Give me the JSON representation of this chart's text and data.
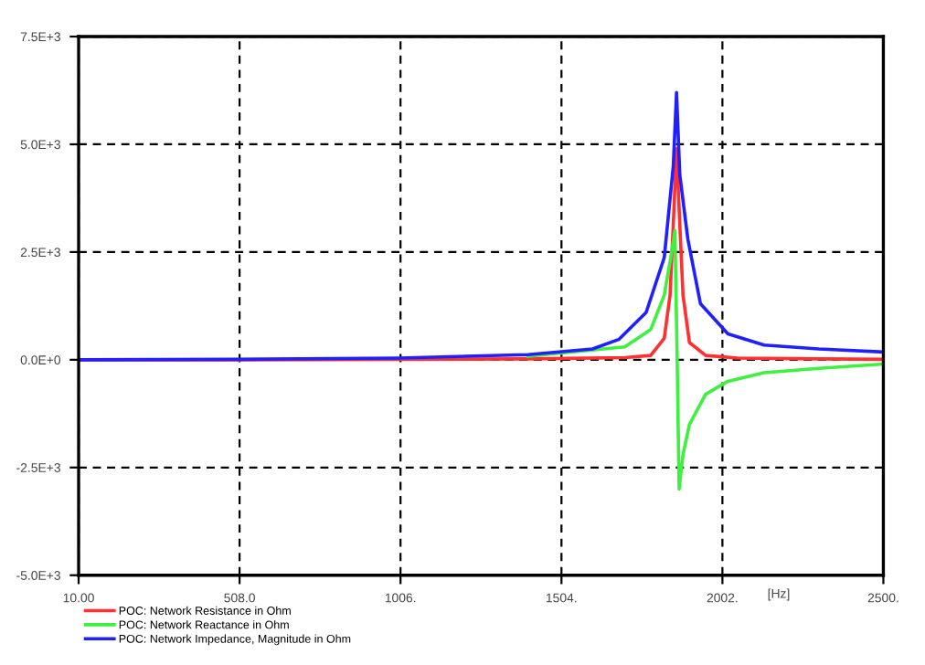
{
  "chart_data": {
    "type": "line",
    "xlabel": "[Hz]",
    "xlim": [
      10,
      2500
    ],
    "xticks": [
      {
        "value": 10,
        "label": "10.00"
      },
      {
        "value": 508,
        "label": "508.0"
      },
      {
        "value": 1006,
        "label": "1006."
      },
      {
        "value": 1504,
        "label": "1504."
      },
      {
        "value": 2002,
        "label": "2002."
      },
      {
        "value": 2500,
        "label": "2500."
      }
    ],
    "ylim": [
      -5000,
      7500
    ],
    "yticks": [
      {
        "value": -5000,
        "label": "-5.0E+3"
      },
      {
        "value": -2500,
        "label": "-2.5E+3"
      },
      {
        "value": 0,
        "label": "0.0E+0"
      },
      {
        "value": 2500,
        "label": "2.5E+3"
      },
      {
        "value": 5000,
        "label": "5.0E+3"
      },
      {
        "value": 7500,
        "label": "7.5E+3"
      }
    ],
    "grid": true,
    "legend": "bottom left",
    "line_style": "solid",
    "marker": "none",
    "series": [
      {
        "name": "POC: Network Resistance in Ohm",
        "color": "#ff3030",
        "x": [
          10,
          500,
          1000,
          1400,
          1700,
          1780,
          1822,
          1840,
          1852,
          1860,
          1868,
          1880,
          1900,
          1950,
          2050,
          2300,
          2500
        ],
        "values": [
          0,
          0,
          10,
          20,
          50,
          100,
          500,
          1500,
          3500,
          4900,
          3500,
          1500,
          400,
          100,
          40,
          20,
          10
        ]
      },
      {
        "name": "POC: Network Reactance in Ohm",
        "color": "#40f040",
        "x": [
          1400,
          1700,
          1780,
          1822,
          1845,
          1855,
          1862,
          1868,
          1880,
          1900,
          1950,
          2019,
          2131,
          2300,
          2500
        ],
        "values": [
          80,
          300,
          700,
          1500,
          2500,
          3000,
          0,
          -3000,
          -2200,
          -1500,
          -800,
          -500,
          -300,
          -200,
          -100
        ]
      },
      {
        "name": "POC: Network Impedance, Magnitude in Ohm",
        "color": "#2020ff",
        "x": [
          10,
          500,
          1000,
          1400,
          1600,
          1681,
          1766,
          1822,
          1850,
          1860,
          1870,
          1895,
          1934,
          2019,
          2131,
          2300,
          2500
        ],
        "values": [
          0,
          10,
          40,
          120,
          250,
          470,
          1100,
          2370,
          4500,
          6200,
          4300,
          2800,
          1300,
          600,
          340,
          250,
          180
        ]
      }
    ]
  }
}
